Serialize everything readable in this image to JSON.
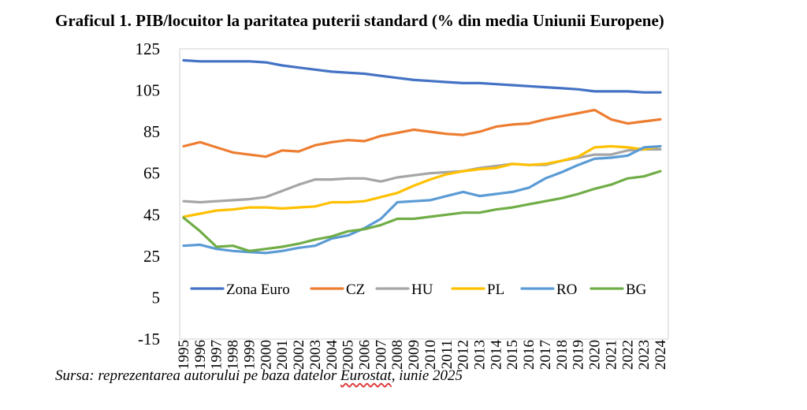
{
  "title": "Graficul 1. PIB/locuitor la paritatea puterii standard (% din media Uniunii Europene)",
  "source": {
    "before": "Sursa: reprezentarea autorului pe baza datelor ",
    "underlined": "Eurostat",
    "after": ", iunie 2025"
  },
  "chart_data": {
    "type": "line",
    "title": "Graficul 1. PIB/locuitor la paritatea puterii standard (% din media Uniunii Europene)",
    "xlabel": "",
    "ylabel": "",
    "ylim": [
      -15,
      125
    ],
    "yticks": [
      125,
      105,
      85,
      65,
      45,
      25,
      5,
      -15
    ],
    "grid": false,
    "legend_position": "bottom-inside",
    "x": [
      "1995",
      "1996",
      "1997",
      "1998",
      "1999",
      "2000",
      "2001",
      "2002",
      "2003",
      "2004",
      "2005",
      "2006",
      "2007",
      "2008",
      "2009",
      "2010",
      "2011",
      "2012",
      "2013",
      "2014",
      "2015",
      "2016",
      "2017",
      "2018",
      "2019",
      "2020",
      "2021",
      "2022",
      "2023",
      "2024"
    ],
    "series": [
      {
        "name": "Zona Euro",
        "color": "#4472C4",
        "values": [
          119.5,
          119,
          119,
          119,
          119,
          118.5,
          117,
          116,
          115,
          114,
          113.5,
          113,
          112,
          111,
          110,
          109.5,
          109,
          108.5,
          108.5,
          108,
          107.5,
          107,
          106.5,
          106,
          105.5,
          104.5,
          104.5,
          104.5,
          104,
          104
        ]
      },
      {
        "name": "CZ",
        "color": "#ED7D31",
        "values": [
          78,
          80,
          77.5,
          75,
          74,
          73,
          76,
          75.5,
          78.5,
          80,
          81,
          80.5,
          83,
          84.5,
          86,
          85,
          84,
          83.5,
          85,
          87.5,
          88.5,
          89,
          91,
          92.5,
          94,
          95.5,
          91,
          89,
          90,
          91
        ]
      },
      {
        "name": "HU",
        "color": "#A5A5A5",
        "values": [
          51.5,
          51,
          51.5,
          52,
          52.5,
          53.5,
          56.5,
          59.5,
          62,
          62,
          62.5,
          62.5,
          61,
          63,
          64,
          65,
          65.5,
          66,
          67.5,
          68.5,
          69.5,
          69,
          69,
          71,
          72.5,
          74,
          74,
          76,
          76.5,
          76.5
        ]
      },
      {
        "name": "PL",
        "color": "#FFC000",
        "values": [
          44,
          45.5,
          47,
          47.5,
          48.5,
          48.5,
          48,
          48.5,
          49,
          51,
          51,
          51.5,
          53.5,
          55.5,
          59,
          62,
          64.5,
          66,
          67,
          67.5,
          69.5,
          69,
          69.5,
          71,
          73,
          77.5,
          78,
          77.5,
          76.5,
          78
        ]
      },
      {
        "name": "RO",
        "color": "#5B9BD5",
        "values": [
          30,
          30.5,
          28.5,
          27.5,
          27,
          26.5,
          27.5,
          29,
          30,
          33.5,
          35,
          38.5,
          43,
          51,
          51.5,
          52,
          54,
          56,
          54,
          55,
          56,
          58,
          62.5,
          65.5,
          69,
          72,
          72.5,
          73.5,
          77.5,
          78
        ]
      },
      {
        "name": "BG",
        "color": "#70AD47",
        "values": [
          43.5,
          37,
          29.5,
          30,
          27.5,
          28.5,
          29.5,
          31,
          33,
          34.5,
          37,
          38,
          40,
          43,
          43,
          44,
          45,
          46,
          46,
          47.5,
          48.5,
          50,
          51.5,
          53,
          55,
          57.5,
          59.5,
          62.5,
          63.5,
          66
        ]
      }
    ]
  }
}
